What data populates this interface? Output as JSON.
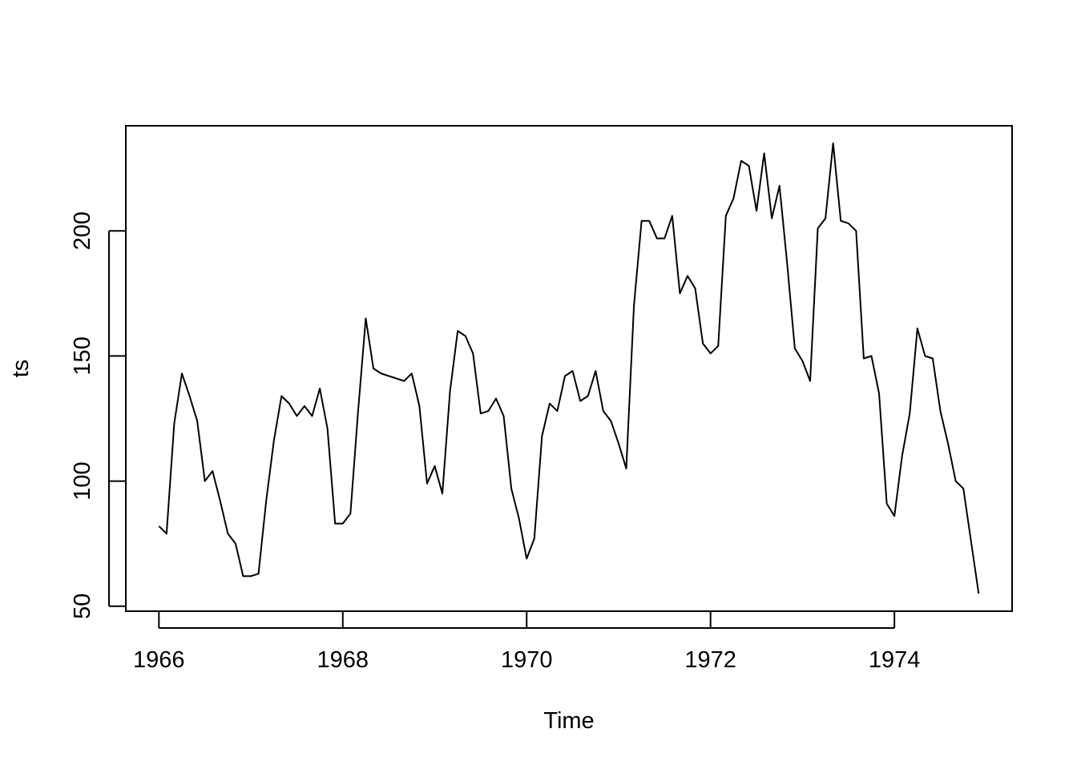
{
  "chart_data": {
    "type": "line",
    "title": "",
    "xlabel": "Time",
    "ylabel": "ts",
    "xlim": [
      1965.64,
      1975.28
    ],
    "ylim": [
      48,
      242
    ],
    "x_ticks": [
      1966,
      1968,
      1970,
      1972,
      1974
    ],
    "y_ticks": [
      50,
      100,
      150,
      200
    ],
    "x_tick_labels": [
      "1966",
      "1968",
      "1970",
      "1972",
      "1974"
    ],
    "y_tick_labels": [
      "50",
      "100",
      "150",
      "200"
    ],
    "grid": false,
    "legend": "none",
    "x_start": 1966,
    "frequency": 12,
    "series": [
      {
        "color": "#000000",
        "values": [
          82,
          79,
          123,
          143,
          134,
          124,
          100,
          104,
          92,
          79,
          75,
          62,
          62,
          63,
          92,
          116,
          134,
          131,
          126,
          130,
          126,
          137,
          121,
          83,
          83,
          87,
          128,
          165,
          145,
          143,
          142,
          141,
          140,
          143,
          130,
          99,
          106,
          95,
          136,
          160,
          158,
          151,
          127,
          128,
          133,
          126,
          97,
          85,
          69,
          77,
          118,
          131,
          128,
          142,
          144,
          132,
          134,
          144,
          128,
          124,
          115,
          105,
          170,
          204,
          204,
          197,
          197,
          206,
          175,
          182,
          177,
          155,
          151,
          154,
          206,
          213,
          228,
          226,
          208,
          231,
          205,
          218,
          187,
          153,
          148,
          140,
          201,
          205,
          235,
          204,
          203,
          200,
          149,
          150,
          135,
          91,
          86,
          110,
          127,
          161,
          150,
          149,
          128,
          115,
          100,
          97,
          76,
          55
        ]
      }
    ]
  }
}
